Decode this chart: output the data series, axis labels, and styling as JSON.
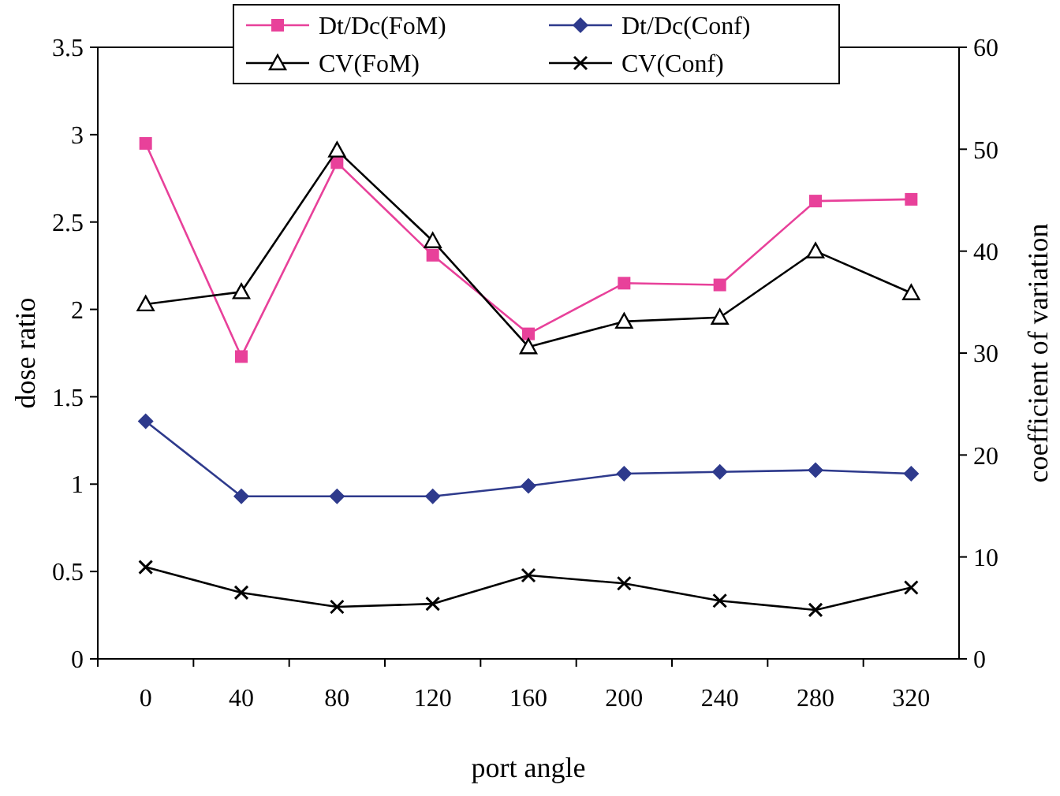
{
  "chart_data": {
    "type": "line",
    "xlabel": "port angle",
    "ylabel": "dose ratio",
    "y2label": "coefficient of variation",
    "categories": [
      "0",
      "40",
      "80",
      "120",
      "160",
      "200",
      "240",
      "280",
      "320"
    ],
    "series": [
      {
        "name": "Dt/Dc(FoM)",
        "color": "#e8419a",
        "marker": "square",
        "values": [
          2.95,
          1.73,
          2.84,
          2.31,
          1.86,
          2.15,
          2.14,
          2.62,
          2.63
        ]
      },
      {
        "name": "Dt/Dc(Conf)",
        "color": "#2e3a8c",
        "marker": "diamond",
        "values": [
          1.36,
          0.93,
          0.93,
          0.93,
          0.99,
          1.06,
          1.07,
          1.08,
          1.06
        ]
      },
      {
        "name": "CV(FoM)",
        "color": "#000000",
        "marker": "triangle",
        "axis": "y2",
        "values": [
          34.8,
          36.0,
          49.9,
          41.0,
          30.6,
          33.1,
          33.5,
          40.0,
          35.9
        ]
      },
      {
        "name": "CV(Conf)",
        "color": "#000000",
        "marker": "cross",
        "axis": "y2",
        "values": [
          9.0,
          6.5,
          5.1,
          5.4,
          8.2,
          7.4,
          5.7,
          4.8,
          7.0
        ]
      }
    ],
    "ylim": [
      0,
      3.5
    ],
    "yticks": [
      0,
      0.5,
      1,
      1.5,
      2,
      2.5,
      3,
      3.5
    ],
    "y2lim": [
      0,
      60
    ],
    "y2ticks": [
      0,
      10,
      20,
      30,
      40,
      50,
      60
    ],
    "legend": "top",
    "grid": false
  }
}
